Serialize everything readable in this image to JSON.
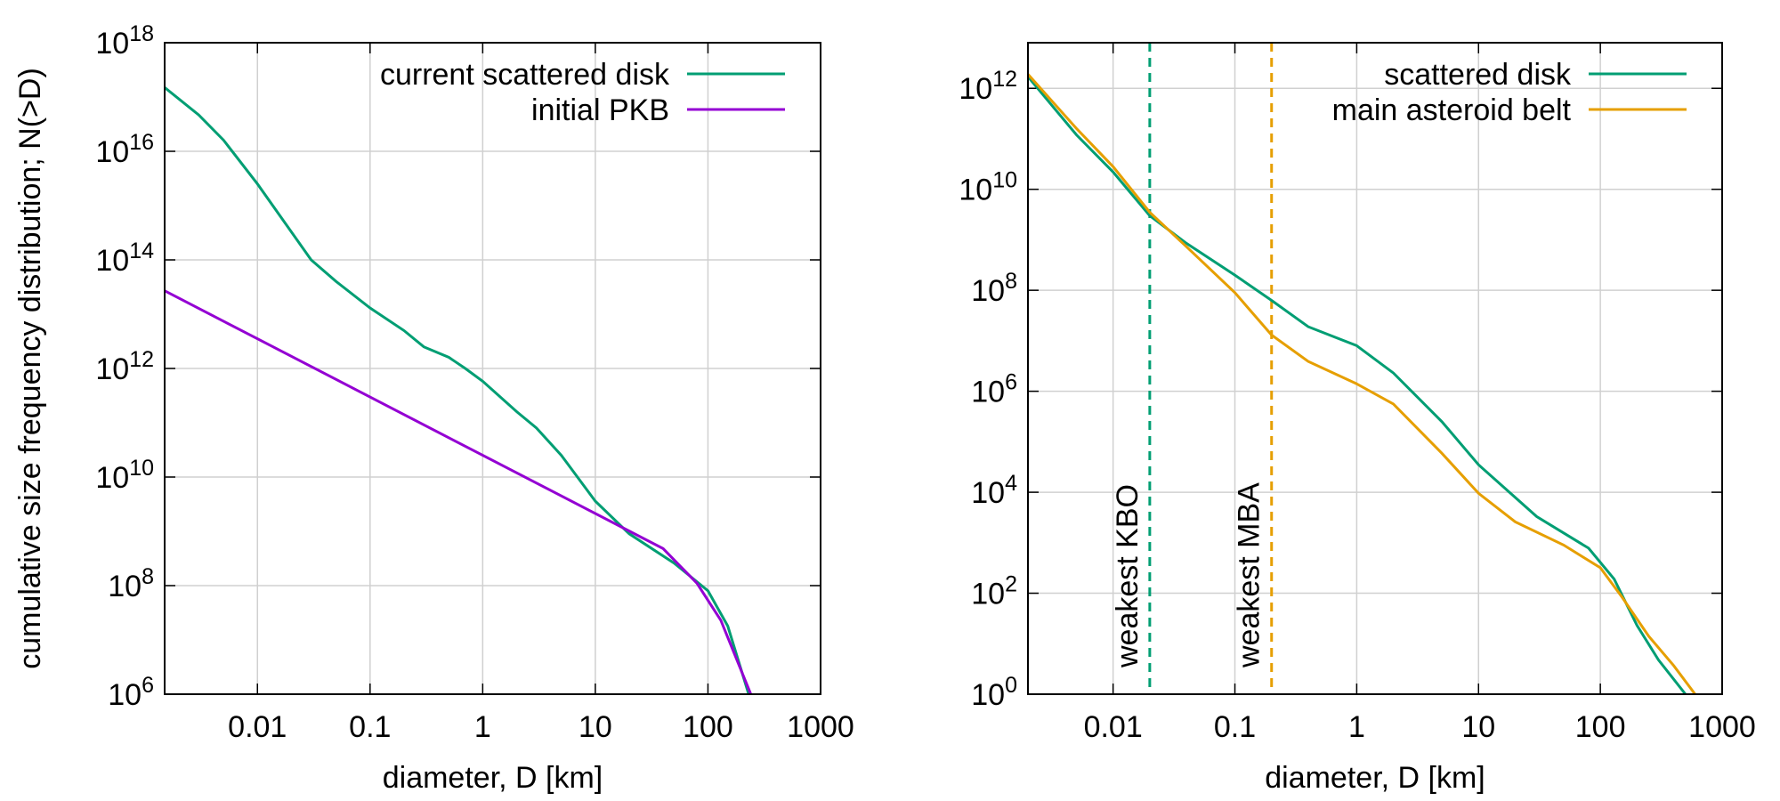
{
  "chart_data": [
    {
      "type": "line",
      "xlabel": "diameter, D [km]",
      "ylabel": "cumulative size frequency distribution; N(>D)",
      "xscale": "log",
      "yscale": "log",
      "grid": true,
      "legend": "upper right",
      "xlim": [
        0.0015,
        1000
      ],
      "xticks": [
        0.01,
        0.1,
        1,
        10,
        100,
        1000
      ],
      "ylim": [
        1000000.0,
        1e+18
      ],
      "yticks": [
        {
          "value": 1000000.0,
          "label": "10^6"
        },
        {
          "value": 100000000.0,
          "label": "10^8"
        },
        {
          "value": 10000000000.0,
          "label": "10^10"
        },
        {
          "value": 1000000000000.0,
          "label": "10^12"
        },
        {
          "value": 100000000000000.0,
          "label": "10^14"
        },
        {
          "value": 1e+16,
          "label": "10^16"
        },
        {
          "value": 1e+18,
          "label": "10^18"
        }
      ],
      "series": [
        {
          "name": "current scattered disk",
          "color": "#009e73",
          "x": [
            0.0015,
            0.003,
            0.005,
            0.01,
            0.03,
            0.05,
            0.1,
            0.2,
            0.3,
            0.5,
            0.7,
            1,
            2,
            3,
            5,
            10,
            20,
            50,
            100,
            150,
            230
          ],
          "values": [
            1.5e+17,
            4.7e+16,
            1.6e+16,
            2500000000000000.0,
            100000000000000.0,
            40000000000000.0,
            13000000000000.0,
            5000000000000.0,
            2500000000000.0,
            1600000000000.0,
            1000000000000.0,
            580000000000.0,
            160000000000.0,
            80000000000.0,
            25000000000.0,
            3600000000.0,
            900000000.0,
            260000000.0,
            80000000.0,
            18000000.0,
            1000000.0
          ]
        },
        {
          "name": "initial PKB",
          "color": "#9400d3",
          "x": [
            0.0015,
            40,
            80,
            130,
            240
          ],
          "values": [
            27000000000000.0,
            480000000.0,
            110000000.0,
            23000000.0,
            1000000.0
          ]
        }
      ]
    },
    {
      "type": "line",
      "xlabel": "diameter, D [km]",
      "xscale": "log",
      "yscale": "log",
      "grid": true,
      "legend": "upper right",
      "xlim": [
        0.002,
        1000
      ],
      "xticks": [
        0.01,
        0.1,
        1,
        10,
        100,
        1000
      ],
      "ylim": [
        1,
        8000000000000.0
      ],
      "yticks": [
        {
          "value": 1,
          "label": "10^0"
        },
        {
          "value": 100,
          "label": "10^2"
        },
        {
          "value": 10000.0,
          "label": "10^4"
        },
        {
          "value": 1000000.0,
          "label": "10^6"
        },
        {
          "value": 100000000.0,
          "label": "10^8"
        },
        {
          "value": 10000000000.0,
          "label": "10^10"
        },
        {
          "value": 1000000000000.0,
          "label": "10^12"
        }
      ],
      "vlines": [
        {
          "x": 0.02,
          "label": "weakest KBO",
          "color": "#009e73"
        },
        {
          "x": 0.2,
          "label": "weakest MBA",
          "color": "#e69f00"
        }
      ],
      "series": [
        {
          "name": "scattered disk",
          "color": "#009e73",
          "x": [
            0.002,
            0.005,
            0.01,
            0.02,
            0.04,
            0.1,
            0.2,
            0.4,
            1,
            2,
            5,
            10,
            30,
            80,
            130,
            200,
            300,
            500
          ],
          "values": [
            1700000000000.0,
            120000000000.0,
            22000000000.0,
            3000000000.0,
            850000000.0,
            200000000.0,
            63000000.0,
            19000000.0,
            8000000.0,
            2300000.0,
            250000.0,
            35000.0,
            3300,
            780,
            190,
            23,
            4.8,
            1
          ]
        },
        {
          "name": "main asteroid belt",
          "color": "#e69f00",
          "x": [
            0.002,
            0.005,
            0.01,
            0.02,
            0.04,
            0.1,
            0.2,
            0.4,
            1,
            2,
            5,
            10,
            20,
            50,
            100,
            150,
            250,
            400,
            600
          ],
          "values": [
            1900000000000.0,
            160000000000.0,
            28000000000.0,
            3500000000.0,
            730000000.0,
            90000000.0,
            13000000.0,
            3900000.0,
            1400000.0,
            560000.0,
            59000.0,
            9500,
            2600,
            900,
            320,
            85,
            14,
            3.7,
            1
          ]
        }
      ]
    }
  ]
}
